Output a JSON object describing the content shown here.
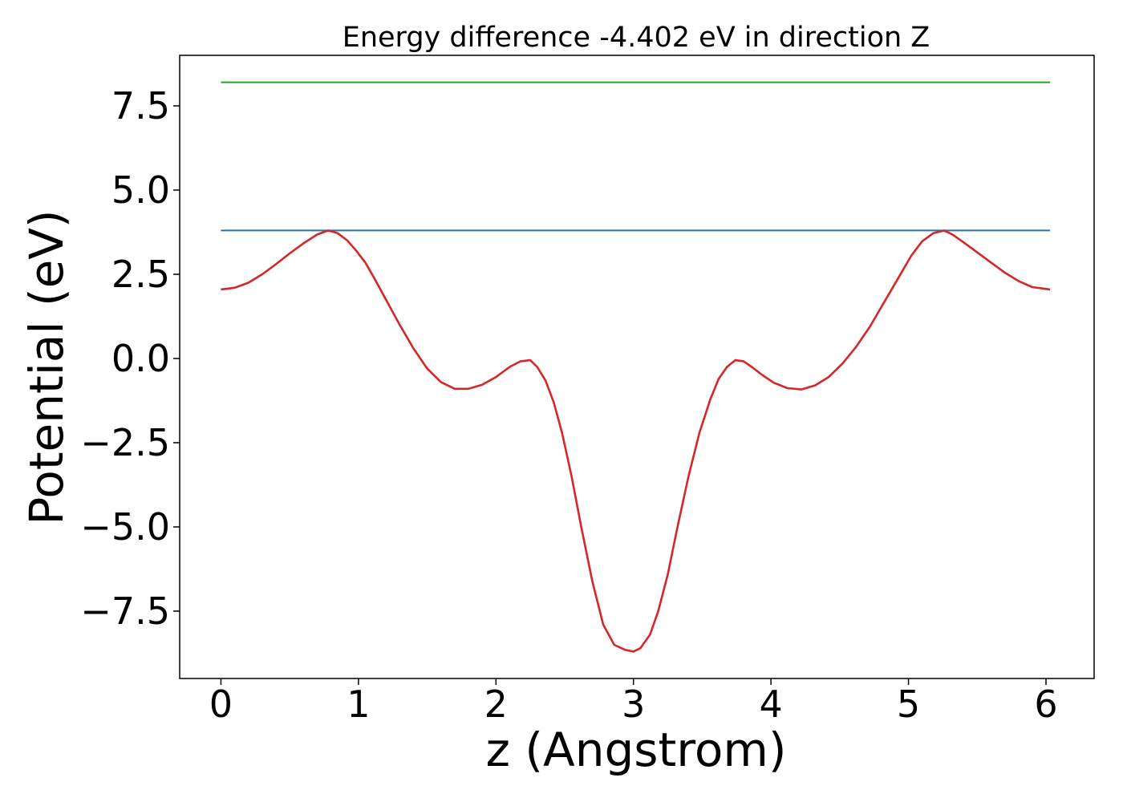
{
  "chart_data": {
    "type": "line",
    "title": "Energy difference -4.402 eV in direction Z",
    "xlabel": "z (Angstrom)",
    "ylabel": "Potential (eV)",
    "xlim": [
      -0.3,
      6.35
    ],
    "ylim": [
      -9.5,
      9.0
    ],
    "xticks": [
      0,
      1,
      2,
      3,
      4,
      5,
      6
    ],
    "xtick_labels": [
      "0",
      "1",
      "2",
      "3",
      "4",
      "5",
      "6"
    ],
    "yticks": [
      -7.5,
      -5.0,
      -2.5,
      0.0,
      2.5,
      5.0,
      7.5
    ],
    "ytick_labels": [
      "−7.5",
      "−5.0",
      "−2.5",
      "0.0",
      "2.5",
      "5.0",
      "7.5"
    ],
    "grid": false,
    "series": [
      {
        "color": "#2ca02c",
        "x": [
          0,
          6.03
        ],
        "y": [
          8.2,
          8.2
        ]
      },
      {
        "color": "#1f77b4",
        "x": [
          0,
          6.03
        ],
        "y": [
          3.8,
          3.8
        ]
      },
      {
        "color": "#d62728",
        "x": [
          0.0,
          0.1,
          0.2,
          0.3,
          0.4,
          0.5,
          0.6,
          0.7,
          0.78,
          0.85,
          0.92,
          0.98,
          1.05,
          1.12,
          1.2,
          1.3,
          1.4,
          1.5,
          1.6,
          1.7,
          1.8,
          1.9,
          2.0,
          2.1,
          2.18,
          2.25,
          2.3,
          2.36,
          2.42,
          2.48,
          2.55,
          2.62,
          2.7,
          2.78,
          2.86,
          2.94,
          3.0,
          3.05,
          3.12,
          3.18,
          3.25,
          3.32,
          3.4,
          3.48,
          3.56,
          3.62,
          3.68,
          3.74,
          3.8,
          3.86,
          3.94,
          4.02,
          4.12,
          4.22,
          4.32,
          4.42,
          4.52,
          4.62,
          4.72,
          4.82,
          4.92,
          5.02,
          5.1,
          5.18,
          5.26,
          5.32,
          5.4,
          5.5,
          5.6,
          5.7,
          5.8,
          5.9,
          6.03
        ],
        "y": [
          2.05,
          2.1,
          2.25,
          2.5,
          2.8,
          3.12,
          3.42,
          3.68,
          3.8,
          3.72,
          3.5,
          3.22,
          2.85,
          2.35,
          1.75,
          1.0,
          0.3,
          -0.3,
          -0.7,
          -0.9,
          -0.9,
          -0.78,
          -0.55,
          -0.25,
          -0.08,
          -0.05,
          -0.25,
          -0.65,
          -1.3,
          -2.2,
          -3.5,
          -5.0,
          -6.6,
          -7.9,
          -8.5,
          -8.65,
          -8.7,
          -8.6,
          -8.2,
          -7.5,
          -6.4,
          -5.0,
          -3.5,
          -2.2,
          -1.2,
          -0.6,
          -0.25,
          -0.05,
          -0.08,
          -0.25,
          -0.5,
          -0.72,
          -0.88,
          -0.92,
          -0.8,
          -0.55,
          -0.15,
          0.35,
          0.95,
          1.65,
          2.35,
          3.05,
          3.48,
          3.72,
          3.8,
          3.68,
          3.45,
          3.15,
          2.85,
          2.55,
          2.3,
          2.12,
          2.05
        ]
      }
    ]
  }
}
